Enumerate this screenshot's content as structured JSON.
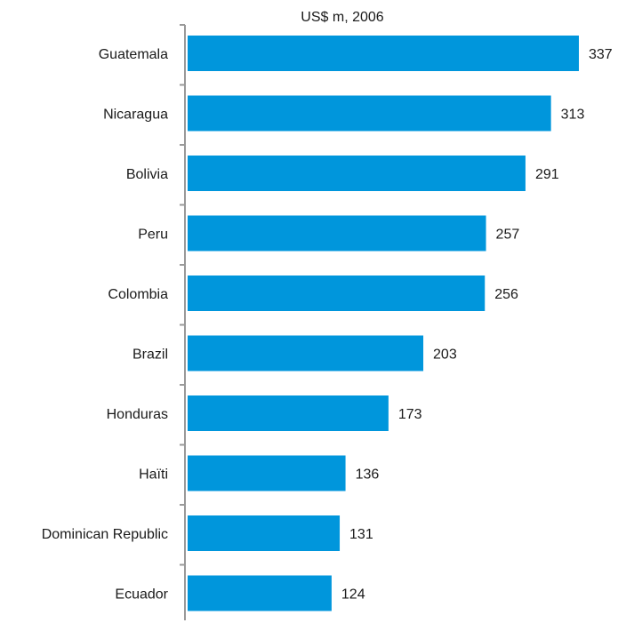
{
  "chart_data": {
    "type": "bar",
    "orientation": "horizontal",
    "title": "US$ m, 2006",
    "categories": [
      "Guatemala",
      "Nicaragua",
      "Bolivia",
      "Peru",
      "Colombia",
      "Brazil",
      "Honduras",
      "Haïti",
      "Dominican Republic",
      "Ecuador"
    ],
    "values": [
      337,
      313,
      291,
      257,
      256,
      203,
      173,
      136,
      131,
      124
    ],
    "data_labels": [
      "337",
      "313",
      "291",
      "257",
      "256",
      "203",
      "173",
      "136",
      "131",
      "124"
    ],
    "xlim": [
      0,
      337
    ],
    "grid": false,
    "bar_color": "#0096dc",
    "axis_color": "#999999"
  }
}
